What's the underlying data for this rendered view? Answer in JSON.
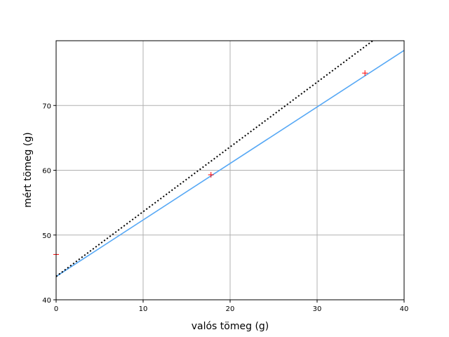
{
  "chart_data": {
    "type": "line",
    "xlabel": "valós tömeg (g)",
    "ylabel": "mért tömeg (g)",
    "xlim": [
      0,
      40
    ],
    "ylim": [
      40,
      80
    ],
    "xticks": [
      0,
      10,
      20,
      30,
      40
    ],
    "yticks": [
      40,
      50,
      60,
      70
    ],
    "grid": true,
    "series": [
      {
        "kind": "scatter",
        "marker": "+",
        "color": "#ff0000",
        "points": [
          [
            0,
            47.0
          ],
          [
            17.8,
            59.3
          ],
          [
            35.5,
            75.0
          ]
        ]
      },
      {
        "kind": "line",
        "style": "solid",
        "color": "#56a8f5",
        "points": [
          [
            0,
            43.6
          ],
          [
            40,
            78.5
          ]
        ]
      },
      {
        "kind": "line",
        "style": "dotted",
        "color": "#000000",
        "points": [
          [
            0,
            43.6
          ],
          [
            36.4,
            80.0
          ]
        ]
      }
    ]
  }
}
